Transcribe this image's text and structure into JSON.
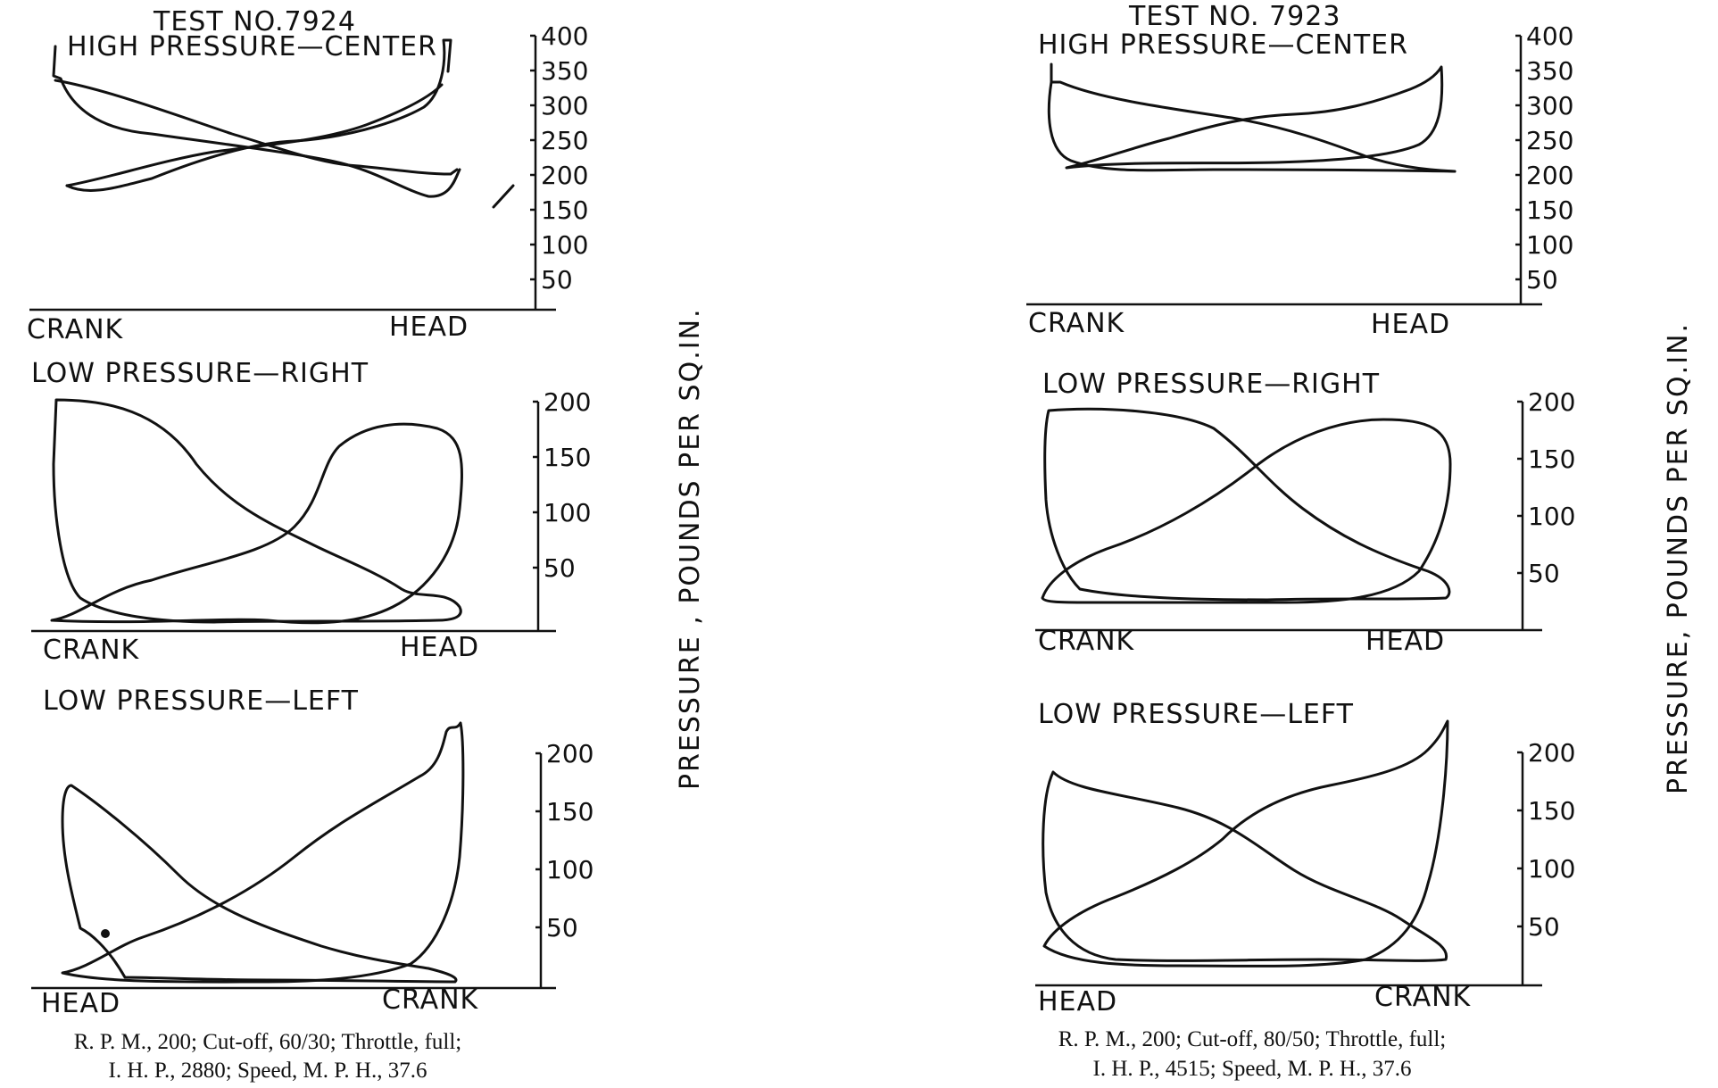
{
  "chart_data": [
    {
      "type": "line",
      "test": "TEST NO.7924",
      "panels": [
        {
          "title": "HIGH PRESSURE—CENTER",
          "left_end": "CRANK",
          "right_end": "HEAD",
          "yticks": [
            "400",
            "350",
            "300",
            "250",
            "200",
            "150",
            "100",
            "50"
          ],
          "ylim": [
            0,
            400
          ]
        },
        {
          "title": "LOW PRESSURE—RIGHT",
          "left_end": "CRANK",
          "right_end": "HEAD",
          "yticks": [
            "200",
            "150",
            "100",
            "50"
          ],
          "ylim": [
            0,
            200
          ]
        },
        {
          "title": "LOW PRESSURE—LEFT",
          "left_end": "HEAD",
          "right_end": "CRANK",
          "yticks": [
            "200",
            "150",
            "100",
            "50"
          ],
          "ylim": [
            0,
            200
          ]
        }
      ],
      "ylabel": "PRESSURE , POUNDS PER SQ.IN.",
      "caption_line1": "R. P. M., 200; Cut-off, 60/30; Throttle, full;",
      "caption_line2": "I. H. P., 2880; Speed, M. P. H., 37.6"
    },
    {
      "type": "line",
      "test": "TEST NO. 7923",
      "panels": [
        {
          "title": "HIGH PRESSURE—CENTER",
          "left_end": "CRANK",
          "right_end": "HEAD",
          "yticks": [
            "400",
            "350",
            "300",
            "250",
            "200",
            "150",
            "100",
            "50"
          ],
          "ylim": [
            0,
            400
          ]
        },
        {
          "title": "LOW PRESSURE—RIGHT",
          "left_end": "CRANK",
          "right_end": "HEAD",
          "yticks": [
            "200",
            "150",
            "100",
            "50"
          ],
          "ylim": [
            0,
            200
          ]
        },
        {
          "title": "LOW PRESSURE—LEFT",
          "left_end": "HEAD",
          "right_end": "CRANK",
          "yticks": [
            "200",
            "150",
            "100",
            "50"
          ],
          "ylim": [
            0,
            200
          ]
        }
      ],
      "ylabel": "PRESSURE, POUNDS PER SQ.IN.",
      "caption_line1": "R. P. M., 200; Cut-off, 80/50; Throttle, full;",
      "caption_line2": "I. H. P., 4515; Speed, M. P. H., 37.6"
    }
  ]
}
